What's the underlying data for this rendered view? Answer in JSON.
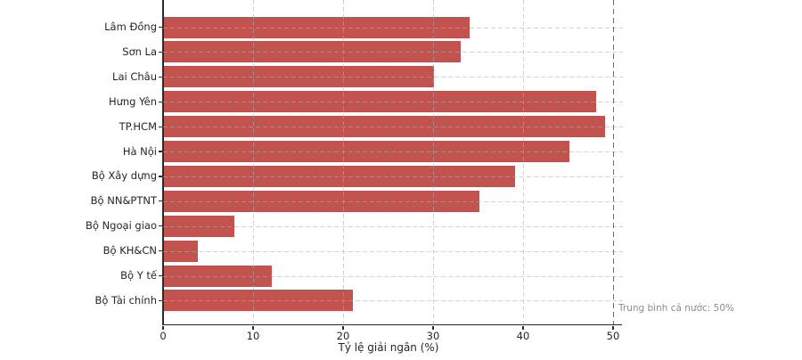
{
  "chart_data": {
    "type": "bar",
    "orientation": "horizontal",
    "categories": [
      "Lâm Đồng",
      "Sơn La",
      "Lai Châu",
      "Hưng Yên",
      "TP.HCM",
      "Hà Nội",
      "Bộ Xây dựng",
      "Bộ NN&PTNT",
      "Bộ Ngoại giao",
      "Bộ KH&CN",
      "Bộ Y tế",
      "Bộ Tài chính"
    ],
    "values": [
      34,
      33,
      30,
      48,
      49,
      45,
      39,
      35,
      7.8,
      3.8,
      12,
      21
    ],
    "xlabel": "Tỷ lệ giải ngân (%)",
    "x_ticks": [
      0,
      10,
      20,
      30,
      40,
      50
    ],
    "xlim": [
      0,
      51
    ],
    "grid": "dashed light-gray gridlines on both axes, drawn over bars",
    "legend": "none",
    "title": "",
    "reference_line": {
      "x": 50,
      "style": "dashed",
      "color": "#6b6b6b",
      "label": "Trung bình cả nước: 50%"
    },
    "colors": {
      "bar_fill": "#C1524E",
      "spine": "#2b2b2b",
      "tick_text": "#262626",
      "annotation_text": "#8c8c8c",
      "gridline": "#bdbdbd"
    }
  }
}
